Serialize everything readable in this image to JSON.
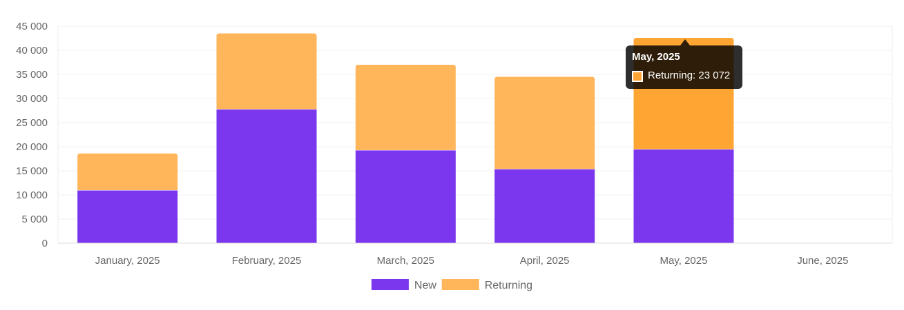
{
  "chart_data": {
    "type": "bar",
    "stacked": true,
    "categories": [
      "January, 2025",
      "February, 2025",
      "March, 2025",
      "April, 2025",
      "May, 2025",
      "June, 2025"
    ],
    "series": [
      {
        "name": "New",
        "color": "#7a37ee",
        "values": [
          11000,
          27800,
          19300,
          15400,
          19500,
          0
        ]
      },
      {
        "name": "Returning",
        "color": "#ffb55a",
        "hover_color": "#ffa534",
        "values": [
          7600,
          15700,
          17700,
          19100,
          23072,
          0
        ]
      }
    ],
    "ylim": [
      0,
      45000
    ],
    "y_ticks": [
      "0",
      "5 000",
      "10 000",
      "15 000",
      "20 000",
      "25 000",
      "30 000",
      "35 000",
      "40 000",
      "45 000"
    ],
    "y_tick_values": [
      0,
      5000,
      10000,
      15000,
      20000,
      25000,
      30000,
      35000,
      40000,
      45000
    ],
    "grid": true,
    "legend_position": "bottom",
    "title": "",
    "xlabel": "",
    "ylabel": ""
  },
  "tooltip": {
    "title": "May, 2025",
    "body": "Returning: 23 072",
    "category_index": 4,
    "series_index": 1
  }
}
